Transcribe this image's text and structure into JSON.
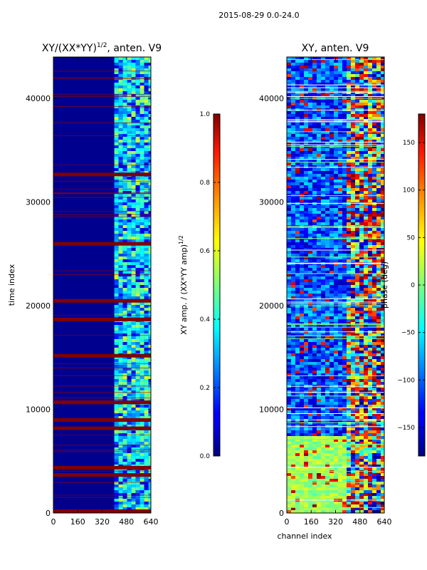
{
  "suptitle": "2015-08-29 0.0-24.0",
  "chart_data": [
    {
      "type": "heatmap",
      "title": "XY/(XX*YY)^{1/2}, anten. V9",
      "title_main": "XY/(XX*YY)",
      "title_sup": "1/2",
      "title_tail": ", anten. V9",
      "xlabel": "",
      "ylabel": "time index",
      "xlim": [
        0,
        640
      ],
      "ylim": [
        0,
        44000
      ],
      "xticks": [
        0,
        160,
        320,
        480,
        640
      ],
      "yticks": [
        0,
        10000,
        20000,
        30000,
        40000
      ],
      "colorbar": {
        "label": "XY amp. / (XX*YY amp)^{1/2}",
        "label_main": "XY amp. / (XX*YY amp)",
        "label_sup": "1/2",
        "range": [
          0.0,
          1.0
        ],
        "ticks": [
          "0.0",
          "0.2",
          "0.4",
          "0.6",
          "0.8",
          "1.0"
        ],
        "tick_values": [
          0.0,
          0.2,
          0.4,
          0.6,
          0.8,
          1.0
        ]
      },
      "saturated_rows": [
        0,
        3500,
        4200,
        8000,
        8800,
        10500,
        15000,
        18500,
        20300,
        25800,
        32500
      ],
      "active_channel_range": [
        400,
        640
      ]
    },
    {
      "type": "heatmap",
      "title": "XY, anten. V9",
      "xlabel": "channel index",
      "ylabel": "",
      "xlim": [
        0,
        640
      ],
      "ylim": [
        0,
        44000
      ],
      "xticks": [
        0,
        160,
        320,
        480,
        640
      ],
      "yticks": [
        0,
        10000,
        20000,
        30000,
        40000
      ],
      "colorbar": {
        "label": "phase (deg)",
        "range": [
          -180,
          180
        ],
        "ticks": [
          "−150",
          "−100",
          "−50",
          "0",
          "50",
          "100",
          "150"
        ],
        "tick_values": [
          -150,
          -100,
          -50,
          0,
          50,
          100,
          150
        ]
      }
    }
  ]
}
